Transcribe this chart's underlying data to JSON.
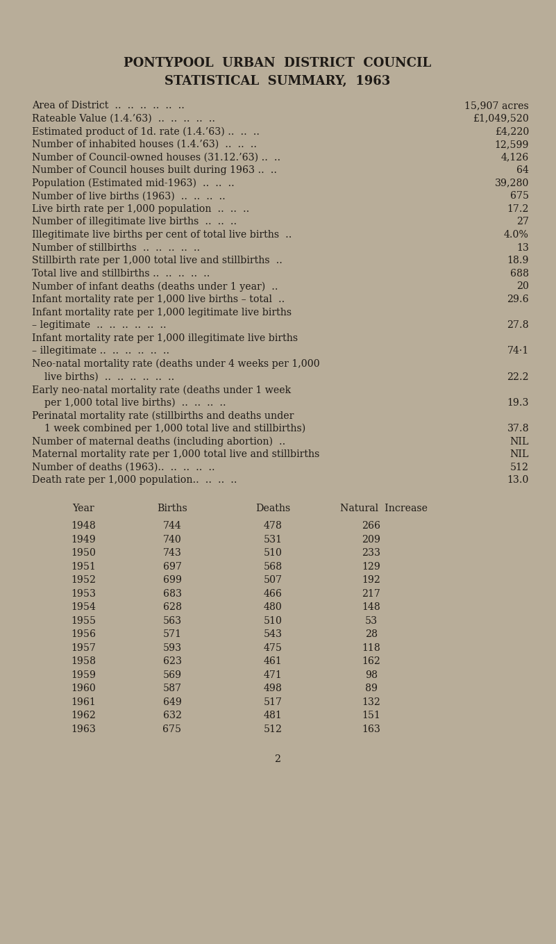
{
  "bg_color": "#b8ad99",
  "text_color": "#1e1a16",
  "title_line1": "PONTYPOOL  URBAN  DISTRICT  COUNCIL",
  "title_line2": "STATISTICAL  SUMMARY,  1963",
  "stats": [
    [
      "Area of District  ..  ..  ..  ..  ..  ..",
      "15,907 acres"
    ],
    [
      "Rateable Value (1.4.’63)  ..  ..  ..  ..  ..",
      "£1,049,520"
    ],
    [
      "Estimated product of 1d. rate (1.4.’63) ..  ..  ..",
      "£4,220"
    ],
    [
      "Number of inhabited houses (1.4.’63)  ..  ..  ..",
      "12,599"
    ],
    [
      "Number of Council-owned houses (31.12.’63) ..  ..",
      "4,126"
    ],
    [
      "Number of Council houses built during 1963 ..  ..",
      "64"
    ],
    [
      "Population (Estimated mid-1963)  ..  ..  ..",
      "39,280"
    ],
    [
      "Number of live births (1963)  ..  ..  ..  ..",
      "675"
    ],
    [
      "Live birth rate per 1,000 population  ..  ..  ..",
      "17.2"
    ],
    [
      "Number of illegitimate live births  ..  ..  ..",
      "27"
    ],
    [
      "Illegitimate live births per cent of total live births  ..",
      "4.0%"
    ],
    [
      "Number of stillbirths  ..  ..  ..  ..  ..",
      "13"
    ],
    [
      "Stillbirth rate per 1,000 total live and stillbirths  ..",
      "18.9"
    ],
    [
      "Total live and stillbirths ..  ..  ..  ..  ..",
      "688"
    ],
    [
      "Number of infant deaths (deaths under 1 year)  ..",
      "20"
    ],
    [
      "Infant mortality rate per 1,000 live births – total  ..",
      "29.6"
    ],
    [
      "Infant mortality rate per 1,000 legitimate live births",
      ""
    ],
    [
      "– legitimate  ..  ..  ..  ..  ..  ..",
      "27.8"
    ],
    [
      "Infant mortality rate per 1,000 illegitimate live births",
      ""
    ],
    [
      "– illegitimate ..  ..  ..  ..  ..  ..",
      "74·1"
    ],
    [
      "Neo-natal mortality rate (deaths under 4 weeks per 1,000",
      ""
    ],
    [
      "    live births)  ..  ..  ..  ..  ..  ..",
      "22.2"
    ],
    [
      "Early neo-natal mortality rate (deaths under 1 week",
      ""
    ],
    [
      "    per 1,000 total live births)  ..  ..  ..  ..",
      "19.3"
    ],
    [
      "Perinatal mortality rate (stillbirths and deaths under",
      ""
    ],
    [
      "    1 week combined per 1,000 total live and stillbirths)",
      "37.8"
    ],
    [
      "Number of maternal deaths (including abortion)  ..",
      "NIL"
    ],
    [
      "Maternal mortality rate per 1,000 total live and stillbirths",
      "NIL"
    ],
    [
      "Number of deaths (1963)..  ..  ..  ..  ..",
      "512"
    ],
    [
      "Death rate per 1,000 population..  ..  ..  ..",
      "13.0"
    ]
  ],
  "table_header": [
    "Year",
    "Births",
    "Deaths",
    "Natural  Increase"
  ],
  "table_data": [
    [
      1948,
      744,
      478,
      266
    ],
    [
      1949,
      740,
      531,
      209
    ],
    [
      1950,
      743,
      510,
      233
    ],
    [
      1951,
      697,
      568,
      129
    ],
    [
      1952,
      699,
      507,
      192
    ],
    [
      1953,
      683,
      466,
      217
    ],
    [
      1954,
      628,
      480,
      148
    ],
    [
      1955,
      563,
      510,
      53
    ],
    [
      1956,
      571,
      543,
      28
    ],
    [
      1957,
      593,
      475,
      118
    ],
    [
      1958,
      623,
      461,
      162
    ],
    [
      1959,
      569,
      471,
      98
    ],
    [
      1960,
      587,
      498,
      89
    ],
    [
      1961,
      649,
      517,
      132
    ],
    [
      1962,
      632,
      481,
      151
    ],
    [
      1963,
      675,
      512,
      163
    ]
  ],
  "page_number": "2",
  "title_fontsize": 13.0,
  "stat_fontsize": 10.2,
  "table_fontsize": 10.2,
  "fig_width": 8.01,
  "fig_height": 13.59,
  "dpi": 100
}
